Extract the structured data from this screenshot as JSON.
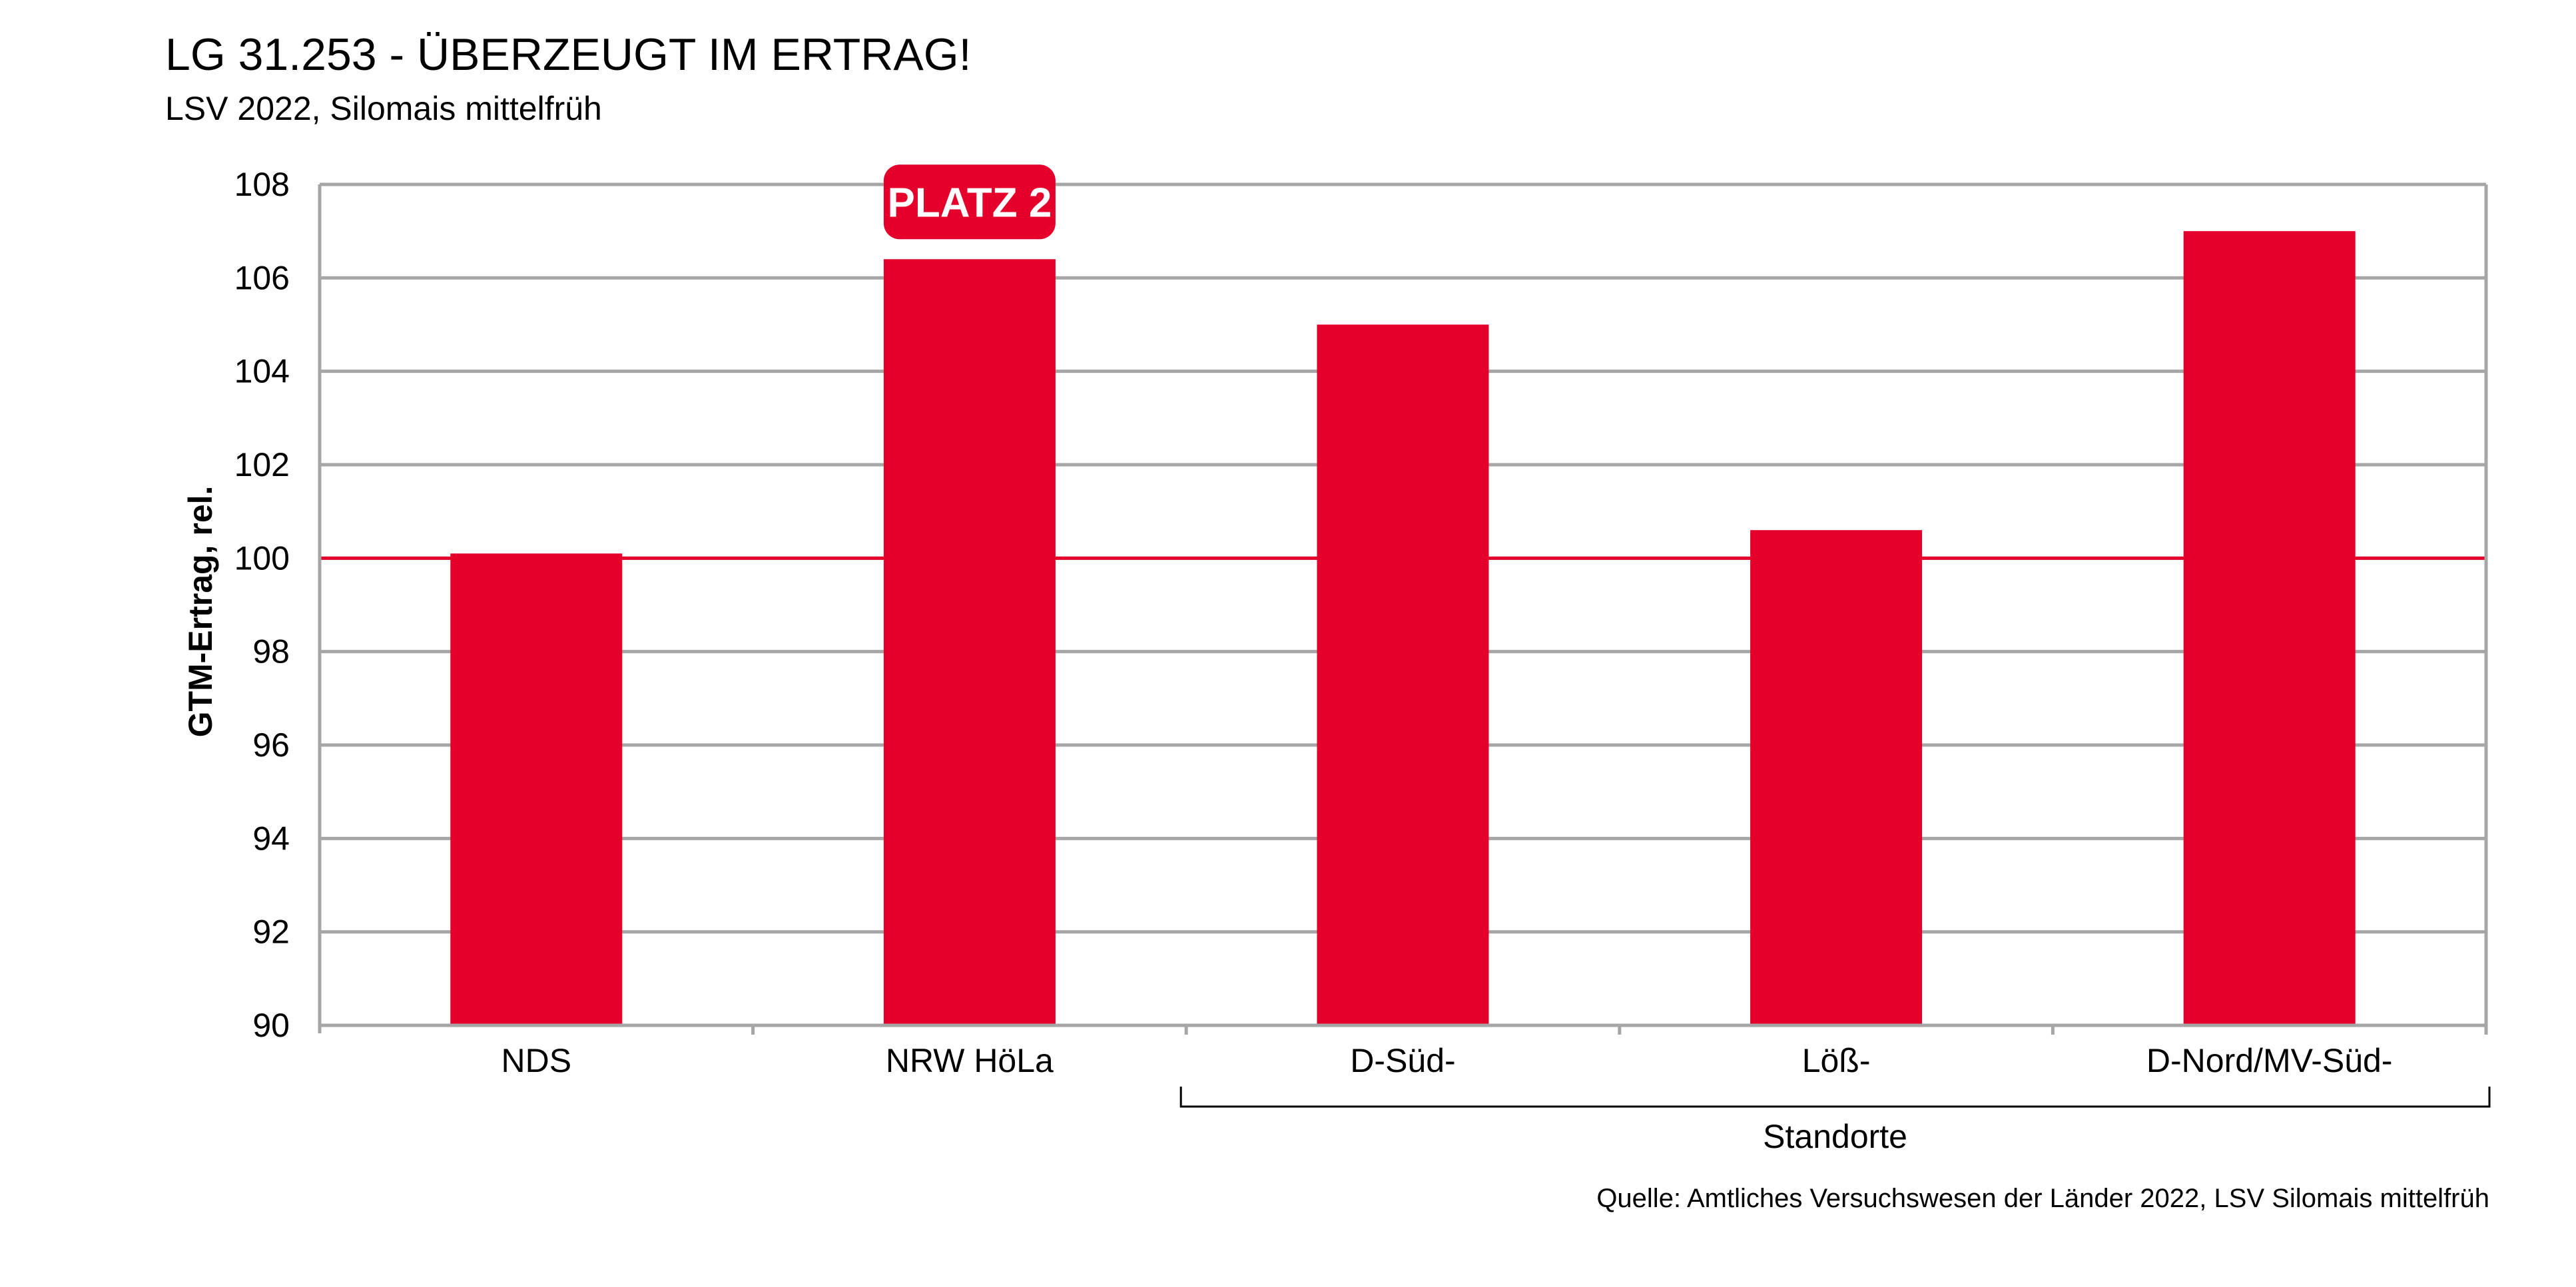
{
  "header": {
    "title": "LG 31.253 - ÜBERZEUGT IM ERTRAG!",
    "subtitle": "LSV 2022, Silomais mittelfrüh"
  },
  "footer": {
    "source": "Quelle: Amtliches Versuchswesen der Länder 2022, LSV Silomais mittelfrüh"
  },
  "chart_data": {
    "type": "bar",
    "categories": [
      "NDS",
      "NRW HöLa",
      "D-Süd-",
      "Löß-",
      "D-Nord/MV-Süd-"
    ],
    "values": [
      100.1,
      106.4,
      105.0,
      100.6,
      107.0
    ],
    "ylabel": "GTM-Ertrag, rel.",
    "ylim": [
      90,
      108
    ],
    "yticks": [
      90,
      92,
      94,
      96,
      98,
      100,
      102,
      104,
      106,
      108
    ],
    "reference_line": 100,
    "group_label": "Standorte",
    "group_categories": [
      "D-Süd-",
      "Löß-",
      "D-Nord/MV-Süd-"
    ],
    "callout": {
      "category": "NRW HöLa",
      "text": "PLATZ 2"
    },
    "grid": true,
    "colors": {
      "bar": "#E4002B",
      "reference_line": "#E4002B",
      "grid": "#A6A6A6",
      "frame": "#A6A6A6"
    }
  }
}
